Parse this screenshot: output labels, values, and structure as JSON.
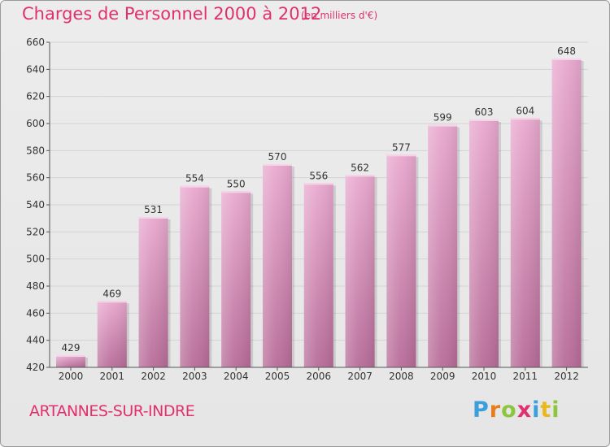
{
  "header": {
    "title": "Charges de Personnel 2000 à 2012",
    "unit": "(en milliers d'€)"
  },
  "footer": {
    "city": "ARTANNES-SUR-INDRE",
    "logo_letters": [
      {
        "char": "P",
        "color": "#3aa0dc"
      },
      {
        "char": "r",
        "color": "#e87d1e"
      },
      {
        "char": "o",
        "color": "#8cc63e"
      },
      {
        "char": "x",
        "color": "#e0306e"
      },
      {
        "char": "i",
        "color": "#3aa0dc"
      },
      {
        "char": "t",
        "color": "#e8b81e"
      },
      {
        "char": "i",
        "color": "#8cc63e"
      }
    ]
  },
  "colors": {
    "accent": "#e0306e",
    "bar_top": "#e9a9cf",
    "bar_bottom": "#b76c98",
    "grid": "#d3d3d3",
    "axis": "#555555"
  },
  "chart_data": {
    "type": "bar",
    "title": "Charges de Personnel 2000 à 2012",
    "subtitle": "(en milliers d'€)",
    "categories": [
      "2000",
      "2001",
      "2002",
      "2003",
      "2004",
      "2005",
      "2006",
      "2007",
      "2008",
      "2009",
      "2010",
      "2011",
      "2012"
    ],
    "values": [
      429,
      469,
      531,
      554,
      550,
      570,
      556,
      562,
      577,
      599,
      603,
      604,
      648
    ],
    "ylim": [
      420,
      660
    ],
    "yticks": [
      420,
      440,
      460,
      480,
      500,
      520,
      540,
      560,
      580,
      600,
      620,
      640,
      660
    ],
    "grid": true,
    "data_labels": true
  }
}
